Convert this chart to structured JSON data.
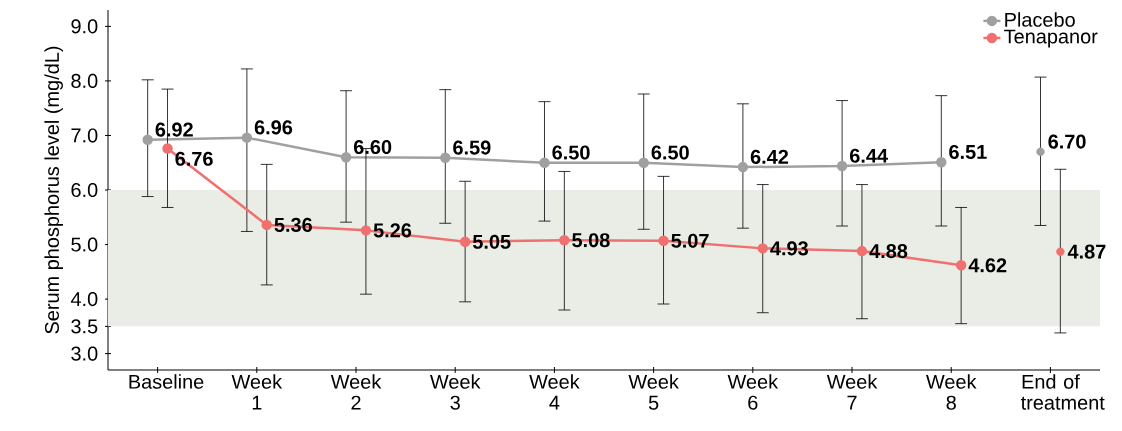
{
  "chart_data": {
    "type": "line",
    "ylabel": "Serum phosphorus level (mg/dL)",
    "categories": [
      "Baseline",
      "Week 1",
      "Week 2",
      "Week 3",
      "Week 4",
      "Week 5",
      "Week 6",
      "Week 7",
      "Week 8",
      "End of treatment"
    ],
    "series": [
      {
        "name": "Placebo",
        "color": "#a0a0a0",
        "values": [
          6.92,
          6.96,
          6.6,
          6.59,
          6.5,
          6.5,
          6.42,
          6.44,
          6.51,
          null
        ],
        "value_labels": [
          "6.92",
          "6.96",
          "6.60",
          "6.59",
          "6.50",
          "6.50",
          "6.42",
          "6.44",
          "6.51",
          null
        ],
        "errors": [
          [
            5.88,
            8.02
          ],
          [
            5.24,
            8.22
          ],
          [
            5.41,
            7.82
          ],
          [
            5.39,
            7.84
          ],
          [
            5.43,
            7.62
          ],
          [
            5.28,
            7.76
          ],
          [
            5.3,
            7.58
          ],
          [
            5.34,
            7.64
          ],
          [
            5.34,
            7.73
          ],
          null
        ]
      },
      {
        "name": "Tenapanor",
        "color": "#f07070",
        "values": [
          6.76,
          5.36,
          5.26,
          5.05,
          5.08,
          5.07,
          4.93,
          4.88,
          4.62,
          null
        ],
        "value_labels": [
          "6.76",
          "5.36",
          "5.26",
          "5.05",
          "5.08",
          "5.07",
          "4.93",
          "4.88",
          "4.62",
          null
        ],
        "errors": [
          [
            5.68,
            7.85
          ],
          [
            4.26,
            6.47
          ],
          [
            4.09,
            6.76
          ],
          [
            3.95,
            6.16
          ],
          [
            3.8,
            6.34
          ],
          [
            3.91,
            6.25
          ],
          [
            3.75,
            6.1
          ],
          [
            3.64,
            6.1
          ],
          [
            3.55,
            5.68
          ],
          null
        ]
      },
      {
        "type": "scatter",
        "color": "#a0a0a0",
        "values": [
          null,
          null,
          null,
          null,
          null,
          null,
          null,
          null,
          null,
          6.7
        ],
        "value_labels": [
          null,
          null,
          null,
          null,
          null,
          null,
          null,
          null,
          null,
          "6.70"
        ],
        "errors": [
          null,
          null,
          null,
          null,
          null,
          null,
          null,
          null,
          null,
          [
            5.35,
            8.07
          ]
        ]
      },
      {
        "type": "scatter",
        "color": "#f07070",
        "values": [
          null,
          null,
          null,
          null,
          null,
          null,
          null,
          null,
          null,
          4.87
        ],
        "value_labels": [
          null,
          null,
          null,
          null,
          null,
          null,
          null,
          null,
          null,
          "4.87"
        ],
        "errors": [
          null,
          null,
          null,
          null,
          null,
          null,
          null,
          null,
          null,
          [
            3.38,
            6.38
          ]
        ]
      }
    ],
    "ylim": [
      2.7,
      9.3
    ],
    "yticks": [
      {
        "value": 3,
        "label": "3.0"
      },
      {
        "value": 3.5,
        "label": "3.5"
      },
      {
        "value": 4,
        "label": "4.0"
      },
      {
        "value": 5,
        "label": "5.0"
      },
      {
        "value": 6,
        "label": "6.0"
      },
      {
        "value": 7,
        "label": "7.0"
      },
      {
        "value": 8,
        "label": "8.0"
      },
      {
        "value": 9,
        "label": "9.0"
      }
    ],
    "bands": [
      {
        "axis": "y",
        "from": 3.5,
        "to": 6.0,
        "color": "#e9ede5"
      }
    ],
    "legend": "top right",
    "marker": "circle",
    "line_style": "solid",
    "grid": false
  }
}
